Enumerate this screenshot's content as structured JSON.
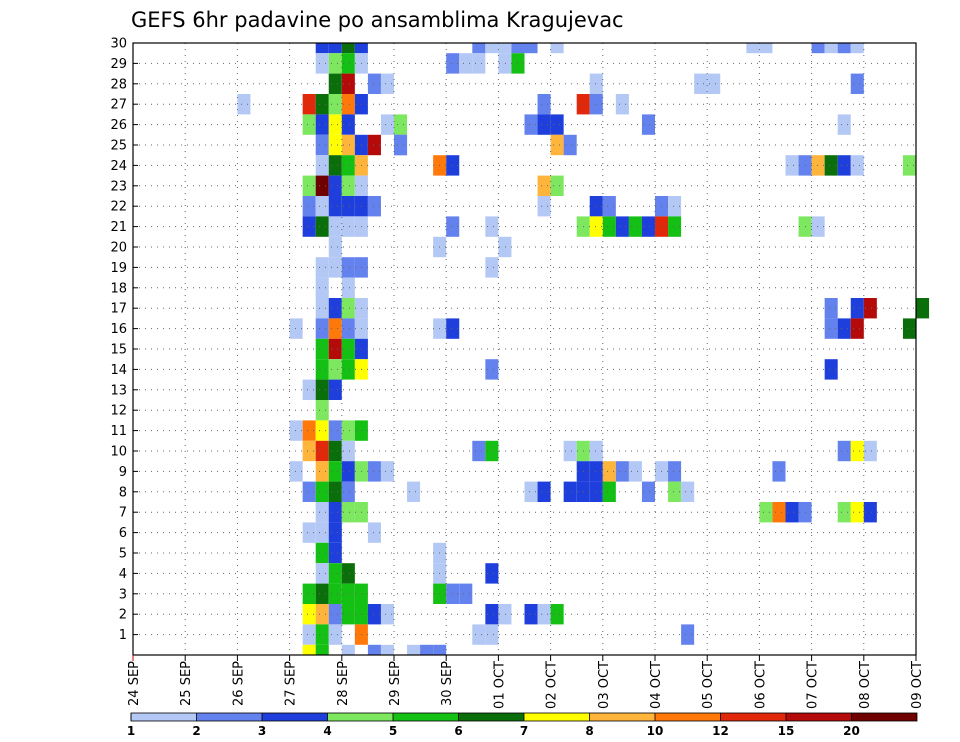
{
  "chart_data": {
    "type": "heatmap",
    "title": "GEFS 6hr padavine po ansamblima Kragujevac",
    "xlabel": "",
    "ylabel": "",
    "x_ticks": [
      "24 SEP",
      "25 SEP",
      "26 SEP",
      "27 SEP",
      "28 SEP",
      "29 SEP",
      "30 SEP",
      "01 OCT",
      "02 OCT",
      "03 OCT",
      "04 OCT",
      "05 OCT",
      "06 OCT",
      "07 OCT",
      "08 OCT",
      "09 OCT"
    ],
    "x_range_hours": [
      0,
      360
    ],
    "x_step_hours": 6,
    "y_ticks": [
      1,
      2,
      3,
      4,
      5,
      6,
      7,
      8,
      9,
      10,
      11,
      12,
      13,
      14,
      15,
      16,
      17,
      18,
      19,
      20,
      21,
      22,
      23,
      24,
      25,
      26,
      27,
      28,
      29,
      30
    ],
    "y_range": [
      0,
      30
    ],
    "grid": true,
    "legend_position": "bottom",
    "colorbar": {
      "labels": [
        "1",
        "2",
        "3",
        "4",
        "5",
        "6",
        "7",
        "8",
        "10",
        "12",
        "15",
        "20"
      ],
      "colors": [
        "#b4c8f5",
        "#6482ee",
        "#1e3fdc",
        "#7de85f",
        "#14c014",
        "#0a6e0a",
        "#ffff00",
        "#ffb43c",
        "#ff780a",
        "#e1280a",
        "#b40a0a",
        "#6e0000"
      ]
    },
    "cells_note": "each entry: [member_row, start_hour, color_level_index(0-11)]",
    "cells": [
      [
        30,
        84,
        2
      ],
      [
        30,
        90,
        2
      ],
      [
        30,
        96,
        5
      ],
      [
        30,
        102,
        2
      ],
      [
        30,
        156,
        1
      ],
      [
        30,
        162,
        0
      ],
      [
        30,
        168,
        0
      ],
      [
        30,
        174,
        1
      ],
      [
        30,
        180,
        1
      ],
      [
        30,
        192,
        0
      ],
      [
        30,
        282,
        0
      ],
      [
        30,
        288,
        0
      ],
      [
        30,
        312,
        1
      ],
      [
        30,
        318,
        0
      ],
      [
        30,
        324,
        1
      ],
      [
        30,
        330,
        0
      ],
      [
        29,
        84,
        0
      ],
      [
        29,
        90,
        3
      ],
      [
        29,
        96,
        4
      ],
      [
        29,
        102,
        0
      ],
      [
        29,
        144,
        1
      ],
      [
        29,
        150,
        0
      ],
      [
        29,
        156,
        0
      ],
      [
        29,
        168,
        0
      ],
      [
        29,
        174,
        4
      ],
      [
        28,
        90,
        5
      ],
      [
        28,
        96,
        10
      ],
      [
        28,
        108,
        1
      ],
      [
        28,
        114,
        0
      ],
      [
        28,
        210,
        0
      ],
      [
        28,
        258,
        0
      ],
      [
        28,
        264,
        0
      ],
      [
        28,
        330,
        1
      ],
      [
        27,
        48,
        0
      ],
      [
        27,
        78,
        9
      ],
      [
        27,
        84,
        5
      ],
      [
        27,
        90,
        3
      ],
      [
        27,
        96,
        8
      ],
      [
        27,
        102,
        2
      ],
      [
        27,
        186,
        1
      ],
      [
        27,
        204,
        9
      ],
      [
        27,
        210,
        1
      ],
      [
        27,
        222,
        0
      ],
      [
        26,
        78,
        3
      ],
      [
        26,
        84,
        2
      ],
      [
        26,
        90,
        6
      ],
      [
        26,
        96,
        2
      ],
      [
        26,
        114,
        0
      ],
      [
        26,
        120,
        3
      ],
      [
        26,
        180,
        1
      ],
      [
        26,
        186,
        2
      ],
      [
        26,
        192,
        2
      ],
      [
        26,
        234,
        1
      ],
      [
        26,
        324,
        0
      ],
      [
        25,
        84,
        1
      ],
      [
        25,
        90,
        6
      ],
      [
        25,
        96,
        7
      ],
      [
        25,
        102,
        2
      ],
      [
        25,
        108,
        10
      ],
      [
        25,
        120,
        1
      ],
      [
        25,
        120,
        1
      ],
      [
        25,
        192,
        7
      ],
      [
        25,
        198,
        1
      ],
      [
        24,
        84,
        0
      ],
      [
        24,
        90,
        5
      ],
      [
        24,
        96,
        4
      ],
      [
        24,
        102,
        7
      ],
      [
        24,
        138,
        8
      ],
      [
        24,
        144,
        2
      ],
      [
        24,
        300,
        0
      ],
      [
        24,
        306,
        1
      ],
      [
        24,
        312,
        7
      ],
      [
        24,
        318,
        5
      ],
      [
        24,
        324,
        2
      ],
      [
        24,
        330,
        0
      ],
      [
        24,
        354,
        3
      ],
      [
        23,
        78,
        3
      ],
      [
        23,
        84,
        11
      ],
      [
        23,
        90,
        2
      ],
      [
        23,
        96,
        3
      ],
      [
        23,
        102,
        0
      ],
      [
        23,
        186,
        7
      ],
      [
        23,
        192,
        3
      ],
      [
        22,
        78,
        1
      ],
      [
        22,
        84,
        0
      ],
      [
        22,
        90,
        2
      ],
      [
        22,
        96,
        2
      ],
      [
        22,
        102,
        2
      ],
      [
        22,
        108,
        1
      ],
      [
        22,
        186,
        0
      ],
      [
        22,
        210,
        2
      ],
      [
        22,
        216,
        1
      ],
      [
        22,
        240,
        1
      ],
      [
        22,
        246,
        0
      ],
      [
        21,
        78,
        2
      ],
      [
        21,
        84,
        5
      ],
      [
        21,
        90,
        0
      ],
      [
        21,
        96,
        0
      ],
      [
        21,
        102,
        0
      ],
      [
        21,
        144,
        1
      ],
      [
        21,
        162,
        0
      ],
      [
        21,
        204,
        3
      ],
      [
        21,
        210,
        6
      ],
      [
        21,
        216,
        4
      ],
      [
        21,
        222,
        2
      ],
      [
        21,
        228,
        4
      ],
      [
        21,
        234,
        2
      ],
      [
        21,
        240,
        9
      ],
      [
        21,
        246,
        4
      ],
      [
        21,
        306,
        3
      ],
      [
        21,
        312,
        0
      ],
      [
        20,
        90,
        0
      ],
      [
        20,
        138,
        0
      ],
      [
        20,
        168,
        0
      ],
      [
        19,
        84,
        0
      ],
      [
        19,
        90,
        0
      ],
      [
        19,
        96,
        1
      ],
      [
        19,
        102,
        1
      ],
      [
        19,
        162,
        0
      ],
      [
        18,
        84,
        0
      ],
      [
        18,
        96,
        0
      ],
      [
        17,
        84,
        0
      ],
      [
        17,
        90,
        2
      ],
      [
        17,
        96,
        3
      ],
      [
        17,
        102,
        0
      ],
      [
        17,
        318,
        1
      ],
      [
        17,
        330,
        2
      ],
      [
        17,
        336,
        10
      ],
      [
        17,
        360,
        5
      ],
      [
        16,
        72,
        0
      ],
      [
        16,
        84,
        1
      ],
      [
        16,
        90,
        8
      ],
      [
        16,
        96,
        1
      ],
      [
        16,
        102,
        0
      ],
      [
        16,
        138,
        0
      ],
      [
        16,
        144,
        2
      ],
      [
        16,
        318,
        1
      ],
      [
        16,
        324,
        2
      ],
      [
        16,
        330,
        10
      ],
      [
        16,
        354,
        5
      ],
      [
        15,
        84,
        4
      ],
      [
        15,
        90,
        10
      ],
      [
        15,
        96,
        4
      ],
      [
        15,
        102,
        2
      ],
      [
        14,
        84,
        4
      ],
      [
        14,
        90,
        3
      ],
      [
        14,
        96,
        4
      ],
      [
        14,
        102,
        6
      ],
      [
        14,
        162,
        1
      ],
      [
        14,
        318,
        2
      ],
      [
        13,
        78,
        0
      ],
      [
        13,
        84,
        5
      ],
      [
        13,
        90,
        2
      ],
      [
        12,
        84,
        3
      ],
      [
        11,
        72,
        0
      ],
      [
        11,
        78,
        8
      ],
      [
        11,
        84,
        6
      ],
      [
        11,
        90,
        1
      ],
      [
        11,
        96,
        3
      ],
      [
        11,
        102,
        4
      ],
      [
        10,
        78,
        7
      ],
      [
        10,
        84,
        9
      ],
      [
        10,
        90,
        5
      ],
      [
        10,
        96,
        0
      ],
      [
        10,
        156,
        1
      ],
      [
        10,
        162,
        4
      ],
      [
        10,
        198,
        0
      ],
      [
        10,
        204,
        3
      ],
      [
        10,
        210,
        0
      ],
      [
        10,
        324,
        1
      ],
      [
        10,
        330,
        6
      ],
      [
        10,
        336,
        0
      ],
      [
        9,
        72,
        0
      ],
      [
        9,
        84,
        7
      ],
      [
        9,
        90,
        4
      ],
      [
        9,
        96,
        2
      ],
      [
        9,
        102,
        3
      ],
      [
        9,
        108,
        1
      ],
      [
        9,
        114,
        0
      ],
      [
        9,
        204,
        2
      ],
      [
        9,
        210,
        2
      ],
      [
        9,
        216,
        7
      ],
      [
        9,
        222,
        1
      ],
      [
        9,
        228,
        0
      ],
      [
        9,
        240,
        0
      ],
      [
        9,
        246,
        1
      ],
      [
        9,
        294,
        1
      ],
      [
        8,
        78,
        1
      ],
      [
        8,
        84,
        4
      ],
      [
        8,
        90,
        5
      ],
      [
        8,
        96,
        1
      ],
      [
        8,
        126,
        0
      ],
      [
        8,
        180,
        0
      ],
      [
        8,
        186,
        2
      ],
      [
        8,
        198,
        2
      ],
      [
        8,
        204,
        2
      ],
      [
        8,
        210,
        2
      ],
      [
        8,
        216,
        4
      ],
      [
        8,
        234,
        1
      ],
      [
        8,
        246,
        3
      ],
      [
        8,
        252,
        0
      ],
      [
        7,
        84,
        0
      ],
      [
        7,
        90,
        2
      ],
      [
        7,
        96,
        3
      ],
      [
        7,
        102,
        3
      ],
      [
        7,
        288,
        3
      ],
      [
        7,
        294,
        8
      ],
      [
        7,
        300,
        2
      ],
      [
        7,
        306,
        1
      ],
      [
        7,
        324,
        3
      ],
      [
        7,
        330,
        6
      ],
      [
        7,
        336,
        2
      ],
      [
        6,
        78,
        0
      ],
      [
        6,
        84,
        0
      ],
      [
        6,
        90,
        2
      ],
      [
        6,
        108,
        0
      ],
      [
        5,
        84,
        4
      ],
      [
        5,
        90,
        2
      ],
      [
        5,
        138,
        0
      ],
      [
        4,
        84,
        0
      ],
      [
        4,
        90,
        4
      ],
      [
        4,
        96,
        5
      ],
      [
        4,
        138,
        0
      ],
      [
        4,
        162,
        2
      ],
      [
        3,
        78,
        4
      ],
      [
        3,
        84,
        5
      ],
      [
        3,
        90,
        4
      ],
      [
        3,
        96,
        4
      ],
      [
        3,
        102,
        4
      ],
      [
        3,
        138,
        4
      ],
      [
        3,
        144,
        1
      ],
      [
        3,
        150,
        1
      ],
      [
        2,
        78,
        6
      ],
      [
        2,
        84,
        7
      ],
      [
        2,
        90,
        1
      ],
      [
        2,
        96,
        4
      ],
      [
        2,
        102,
        4
      ],
      [
        2,
        108,
        2
      ],
      [
        2,
        114,
        0
      ],
      [
        2,
        162,
        2
      ],
      [
        2,
        168,
        0
      ],
      [
        2,
        180,
        2
      ],
      [
        2,
        186,
        0
      ],
      [
        2,
        192,
        4
      ],
      [
        1,
        78,
        0
      ],
      [
        1,
        84,
        4
      ],
      [
        1,
        90,
        0
      ],
      [
        1,
        102,
        8
      ],
      [
        1,
        156,
        0
      ],
      [
        1,
        162,
        0
      ],
      [
        1,
        252,
        1
      ],
      [
        0,
        78,
        6
      ],
      [
        0,
        84,
        4
      ],
      [
        0,
        96,
        0
      ],
      [
        0,
        108,
        1
      ],
      [
        0,
        114,
        0
      ],
      [
        0,
        126,
        0
      ],
      [
        0,
        132,
        1
      ],
      [
        0,
        138,
        1
      ]
    ]
  }
}
